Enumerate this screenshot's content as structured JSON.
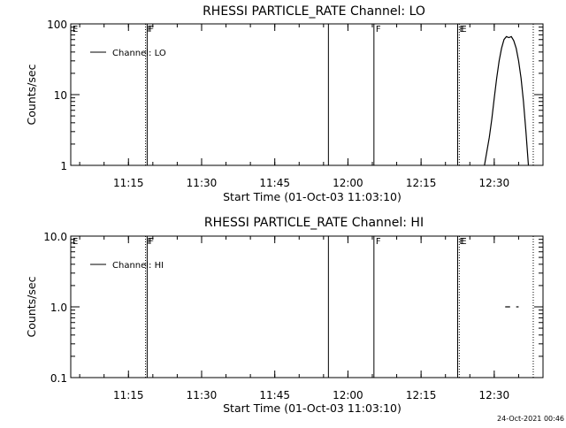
{
  "footer": {
    "timestamp": "24-Oct-2021 00:46"
  },
  "chart_data": [
    {
      "type": "line",
      "title": "RHESSI PARTICLE_RATE Channel: LO",
      "xlabel": "Start Time (01-Oct-03 11:03:10)",
      "ylabel": "Counts/sec",
      "yscale": "log",
      "ylim": [
        1,
        100
      ],
      "xlim": [
        "11:03:10",
        "12:40:00"
      ],
      "x_tick_labels": [
        "11:15",
        "11:30",
        "11:45",
        "12:00",
        "12:15",
        "12:30"
      ],
      "y_tick_labels": [
        "1",
        "10",
        "100"
      ],
      "legend": {
        "position": "top-left",
        "entries": [
          "Channel: LO"
        ]
      },
      "series": [
        {
          "name": "Channel: LO",
          "x": [
            "12:28",
            "12:29",
            "12:29:30",
            "12:30",
            "12:30:30",
            "12:31",
            "12:31:30",
            "12:32",
            "12:32:30",
            "12:33",
            "12:33:30",
            "12:34",
            "12:34:30",
            "12:35",
            "12:35:30",
            "12:36",
            "12:36:30",
            "12:37"
          ],
          "y": [
            1,
            2.5,
            4.5,
            9,
            17,
            30,
            45,
            60,
            66,
            64,
            66,
            58,
            45,
            30,
            17,
            8,
            3,
            1
          ]
        }
      ],
      "flags": [
        {
          "label": "E",
          "time": "11:03:10",
          "style": "none"
        },
        {
          "label": "F",
          "time": "11:18:30",
          "style": "dotted"
        },
        {
          "label": "F",
          "time": "11:18:50",
          "style": "solid"
        },
        {
          "label": "",
          "time": "11:56:00",
          "style": "solid"
        },
        {
          "label": "F",
          "time": "12:05:20",
          "style": "solid"
        },
        {
          "label": "E",
          "time": "12:22:30",
          "style": "solid"
        },
        {
          "label": "E",
          "time": "12:22:50",
          "style": "dotted"
        },
        {
          "label": "",
          "time": "12:38:00",
          "style": "dotted"
        }
      ]
    },
    {
      "type": "line",
      "title": "RHESSI PARTICLE_RATE Channel: HI",
      "xlabel": "Start Time (01-Oct-03 11:03:10)",
      "ylabel": "Counts/sec",
      "yscale": "log",
      "ylim": [
        0.1,
        10
      ],
      "xlim": [
        "11:03:10",
        "12:40:00"
      ],
      "x_tick_labels": [
        "11:15",
        "11:30",
        "11:45",
        "12:00",
        "12:15",
        "12:30"
      ],
      "y_tick_labels": [
        "0.1",
        "1.0",
        "10.0"
      ],
      "legend": {
        "position": "top-left",
        "entries": [
          "Channel: HI"
        ]
      },
      "series": [
        {
          "name": "Channel: HI",
          "segments": [
            {
              "x": [
                "12:32:15",
                "12:33:15"
              ],
              "y": [
                1,
                1
              ]
            },
            {
              "x": [
                "12:34:30",
                "12:35:00"
              ],
              "y": [
                1,
                1
              ]
            }
          ]
        }
      ],
      "flags": [
        {
          "label": "E",
          "time": "11:03:10",
          "style": "none"
        },
        {
          "label": "F",
          "time": "11:18:30",
          "style": "dotted"
        },
        {
          "label": "F",
          "time": "11:18:50",
          "style": "solid"
        },
        {
          "label": "",
          "time": "11:56:00",
          "style": "solid"
        },
        {
          "label": "F",
          "time": "12:05:20",
          "style": "solid"
        },
        {
          "label": "E",
          "time": "12:22:30",
          "style": "solid"
        },
        {
          "label": "E",
          "time": "12:22:50",
          "style": "dotted"
        },
        {
          "label": "",
          "time": "12:38:00",
          "style": "dotted"
        }
      ]
    }
  ]
}
